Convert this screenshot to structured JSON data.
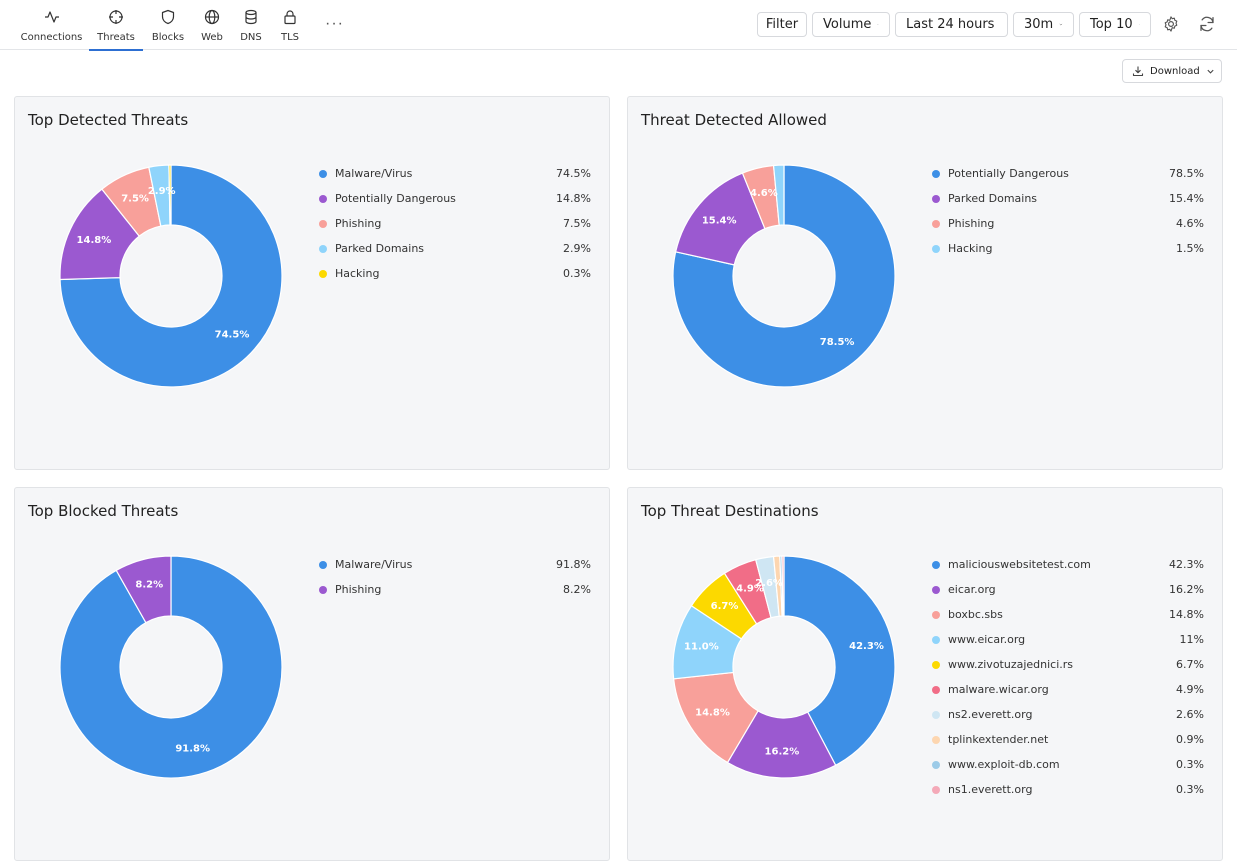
{
  "nav": {
    "tabs": [
      {
        "label": "Connections",
        "icon": "activity-icon"
      },
      {
        "label": "Threats",
        "icon": "crosshair-icon"
      },
      {
        "label": "Blocks",
        "icon": "shield-icon"
      },
      {
        "label": "Web",
        "icon": "globe-icon"
      },
      {
        "label": "DNS",
        "icon": "database-icon"
      },
      {
        "label": "TLS",
        "icon": "lock-icon"
      }
    ],
    "active_tab": "Threats",
    "more_label": "···"
  },
  "toolbar": {
    "filter_label": "Filter",
    "metric_value": "Volume",
    "range_value": "Last 24 hours",
    "interval_value": "30m",
    "limit_value": "Top 10",
    "settings_icon": "gear-icon",
    "refresh_icon": "refresh-icon",
    "download_label": "Download"
  },
  "colors": {
    "blue": "#3d8fe6",
    "purple": "#9b59d0",
    "salmon": "#f8a09a",
    "lightblue": "#8fd4fb",
    "yellow": "#fcd900",
    "pink": "#f16d87",
    "paleblue": "#cfe6f3",
    "peach": "#fdd6b0",
    "steelblue": "#9ccbe8",
    "rose": "#f4a9b8",
    "accent": "#2d6fd2"
  },
  "panels": [
    {
      "title": "Top Detected Threats",
      "chart_data": {
        "type": "pie",
        "title": "Top Detected Threats",
        "slices": [
          {
            "label": "Malware/Virus",
            "value": 74.5,
            "display": "74.5%",
            "color": "#3d8fe6"
          },
          {
            "label": "Potentially Dangerous",
            "value": 14.8,
            "display": "14.8%",
            "color": "#9b59d0"
          },
          {
            "label": "Phishing",
            "value": 7.5,
            "display": "7.5%",
            "color": "#f8a09a"
          },
          {
            "label": "Parked Domains",
            "value": 2.9,
            "display": "2.9%",
            "color": "#8fd4fb"
          },
          {
            "label": "Hacking",
            "value": 0.3,
            "display": "0.3%",
            "color": "#fcd900"
          }
        ]
      }
    },
    {
      "title": "Threat Detected Allowed",
      "chart_data": {
        "type": "pie",
        "title": "Threat Detected Allowed",
        "slices": [
          {
            "label": "Potentially Dangerous",
            "value": 78.5,
            "display": "78.5%",
            "color": "#3d8fe6"
          },
          {
            "label": "Parked Domains",
            "value": 15.4,
            "display": "15.4%",
            "color": "#9b59d0"
          },
          {
            "label": "Phishing",
            "value": 4.6,
            "display": "4.6%",
            "color": "#f8a09a"
          },
          {
            "label": "Hacking",
            "value": 1.5,
            "display": "1.5%",
            "color": "#8fd4fb"
          }
        ]
      }
    },
    {
      "title": "Top Blocked Threats",
      "chart_data": {
        "type": "pie",
        "title": "Top Blocked Threats",
        "slices": [
          {
            "label": "Malware/Virus",
            "value": 91.8,
            "display": "91.8%",
            "color": "#3d8fe6"
          },
          {
            "label": "Phishing",
            "value": 8.2,
            "display": "8.2%",
            "color": "#9b59d0"
          }
        ]
      }
    },
    {
      "title": "Top Threat Destinations",
      "chart_data": {
        "type": "pie",
        "title": "Top Threat Destinations",
        "slices": [
          {
            "label": "maliciouswebsitetest.com",
            "value": 42.3,
            "display": "42.3%",
            "color": "#3d8fe6"
          },
          {
            "label": "eicar.org",
            "value": 16.2,
            "display": "16.2%",
            "color": "#9b59d0"
          },
          {
            "label": "boxbc.sbs",
            "value": 14.8,
            "display": "14.8%",
            "color": "#f8a09a"
          },
          {
            "label": "www.eicar.org",
            "value": 11.0,
            "display": "11%",
            "color": "#8fd4fb"
          },
          {
            "label": "www.zivotuzajednici.rs",
            "value": 6.7,
            "display": "6.7%",
            "color": "#fcd900"
          },
          {
            "label": "malware.wicar.org",
            "value": 4.9,
            "display": "4.9%",
            "color": "#f16d87"
          },
          {
            "label": "ns2.everett.org",
            "value": 2.6,
            "display": "2.6%",
            "color": "#cfe6f3"
          },
          {
            "label": "tplinkextender.net",
            "value": 0.9,
            "display": "0.9%",
            "color": "#fdd6b0"
          },
          {
            "label": "www.exploit-db.com",
            "value": 0.3,
            "display": "0.3%",
            "color": "#9ccbe8"
          },
          {
            "label": "ns1.everett.org",
            "value": 0.3,
            "display": "0.3%",
            "color": "#f4a9b8"
          }
        ]
      }
    }
  ]
}
